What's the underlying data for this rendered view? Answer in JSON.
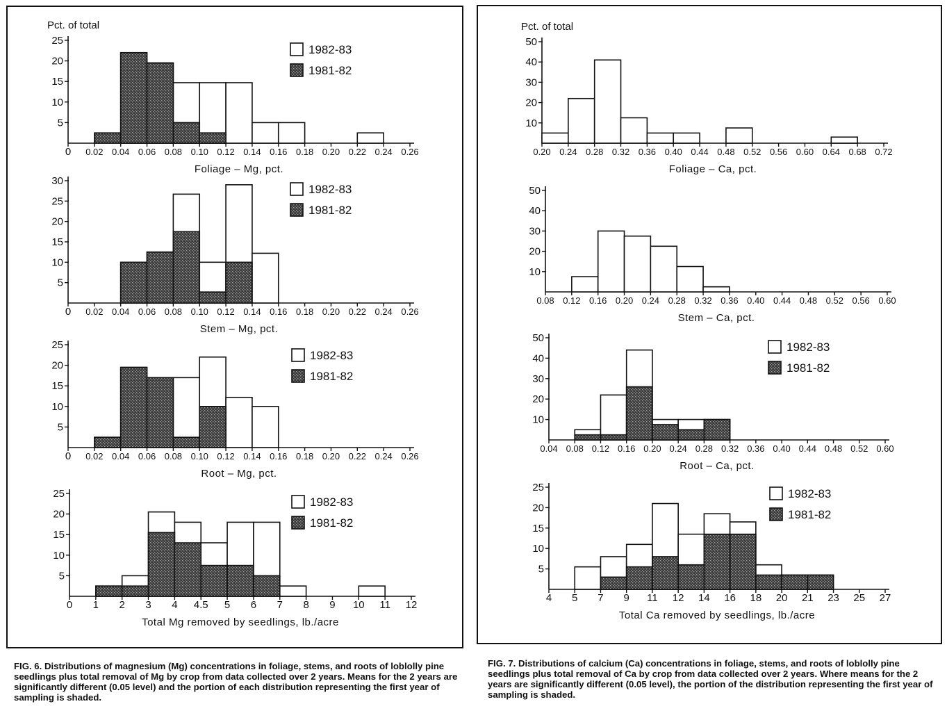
{
  "figures": {
    "fig6": {
      "caption": "FIG. 6. Distributions of magnesium (Mg) concentrations in foliage, stems, and roots of loblolly pine seedlings plus total removal of Mg by crop from data collected over 2 years. Means for the 2 years are significantly different (0.05 level) and the portion of each distribution representing the first year of sampling is shaded."
    },
    "fig7": {
      "caption": "FIG. 7. Distributions of calcium (Ca) concentrations in foliage, stems, and roots of loblolly pine seedlings plus total removal of Ca by crop from data collected over 2 years. Where means for the 2 years are significantly different (0.05 level), the portion of the distribution representing the first year of sampling is shaded."
    }
  },
  "colors": {
    "ink": "#111111",
    "paper": "#ffffff",
    "shade": "#3a3a3a"
  },
  "chart_data": [
    {
      "id": "fig6-foliage",
      "type": "bar",
      "figure": "fig6",
      "ylabel_top": "Pct. of total",
      "xlabel": "Foliage – Mg, pct.",
      "xticks": [
        "0",
        "0.02",
        "0.04",
        "0.06",
        "0.08",
        "0.10",
        "0.12",
        "0.14",
        "0.16",
        "0.18",
        "0.20",
        "0.22",
        "0.24",
        "0.26"
      ],
      "yticks": [
        5,
        10,
        15,
        20,
        25
      ],
      "ylim": [
        0,
        25
      ],
      "legend": {
        "open": "1982-83",
        "shaded": "1981-82"
      },
      "series": [
        {
          "name": "1982-83",
          "values": [
            0,
            0,
            22,
            19.5,
            14.7,
            14.7,
            14.7,
            5,
            5,
            0,
            0,
            2.5,
            0
          ]
        },
        {
          "name": "1981-82",
          "values": [
            0,
            2.5,
            22,
            19.5,
            5,
            2.5,
            0,
            0,
            0,
            0,
            0,
            0,
            0
          ]
        }
      ]
    },
    {
      "id": "fig6-stem",
      "type": "bar",
      "figure": "fig6",
      "xlabel": "Stem – Mg, pct.",
      "xticks": [
        "0",
        "0.02",
        "0.04",
        "0.06",
        "0.08",
        "0.10",
        "0.12",
        "0.14",
        "0.16",
        "0.18",
        "0.20",
        "0.22",
        "0.24",
        "0.26"
      ],
      "yticks": [
        5,
        10,
        15,
        20,
        25,
        30
      ],
      "ylim": [
        0,
        30
      ],
      "legend": {
        "open": "1982-83",
        "shaded": "1981-82"
      },
      "series": [
        {
          "name": "1982-83",
          "values": [
            0,
            0,
            10,
            12.5,
            26.7,
            10,
            29,
            12.2,
            0,
            0,
            0,
            0,
            0
          ]
        },
        {
          "name": "1981-82",
          "values": [
            0,
            0,
            10,
            12.5,
            17.5,
            2.7,
            10,
            0,
            0,
            0,
            0,
            0,
            0
          ]
        }
      ]
    },
    {
      "id": "fig6-root",
      "type": "bar",
      "figure": "fig6",
      "xlabel": "Root – Mg, pct.",
      "xticks": [
        "0",
        "0.02",
        "0.04",
        "0.06",
        "0.08",
        "0.10",
        "0.12",
        "0.14",
        "0.16",
        "0.18",
        "0.20",
        "0.22",
        "0.24",
        "0.26"
      ],
      "yticks": [
        5,
        10,
        15,
        20,
        25
      ],
      "ylim": [
        0,
        25
      ],
      "legend": {
        "open": "1982-83",
        "shaded": "1981-82"
      },
      "series": [
        {
          "name": "1982-83",
          "values": [
            0,
            2.5,
            19.5,
            17,
            17,
            22,
            12.2,
            10,
            0,
            0,
            0,
            0,
            0
          ]
        },
        {
          "name": "1981-82",
          "values": [
            0,
            2.5,
            19.5,
            17,
            2.5,
            10,
            0,
            0,
            0,
            0,
            0,
            0,
            0
          ]
        }
      ]
    },
    {
      "id": "fig6-total",
      "type": "bar",
      "figure": "fig6",
      "xlabel": "Total Mg  removed  by  seedlings, lb./acre",
      "xticks": [
        "0",
        "1",
        "2",
        "3",
        "4",
        "4.5",
        "5",
        "6",
        "7",
        "8",
        "9",
        "10",
        "11",
        "12"
      ],
      "yticks": [
        5,
        10,
        15,
        20,
        25
      ],
      "ylim": [
        0,
        25
      ],
      "legend": {
        "open": "1982-83",
        "shaded": "1981-82"
      },
      "series": [
        {
          "name": "1982-83",
          "values": [
            0,
            2.5,
            5,
            20.5,
            18,
            13,
            18,
            18,
            2.5,
            0,
            0,
            2.5,
            0
          ]
        },
        {
          "name": "1981-82",
          "values": [
            0,
            2.5,
            2.5,
            15.5,
            13,
            7.5,
            7.5,
            5,
            0,
            0,
            0,
            0,
            0
          ]
        }
      ]
    },
    {
      "id": "fig7-foliage",
      "type": "bar",
      "figure": "fig7",
      "ylabel_top": "Pct. of total",
      "xlabel": "Foliage – Ca, pct.",
      "xticks": [
        "0.20",
        "0.24",
        "0.28",
        "0.32",
        "0.36",
        "0.40",
        "0.44",
        "0.48",
        "0.52",
        "0.56",
        "0.60",
        "0.64",
        "0.68",
        "0.72"
      ],
      "yticks": [
        10,
        20,
        30,
        40,
        50
      ],
      "ylim": [
        0,
        50
      ],
      "series": [
        {
          "name": "",
          "values": [
            5,
            22,
            41,
            12.5,
            5,
            5,
            0,
            7.5,
            0,
            0,
            0,
            3,
            0
          ]
        }
      ]
    },
    {
      "id": "fig7-stem",
      "type": "bar",
      "figure": "fig7",
      "xlabel": "Stem – Ca, pct.",
      "xticks": [
        "0.08",
        "0.12",
        "0.16",
        "0.20",
        "0.24",
        "0.28",
        "0.32",
        "0.36",
        "0.40",
        "0.44",
        "0.48",
        "0.52",
        "0.56",
        "0.60"
      ],
      "yticks": [
        10,
        20,
        30,
        40,
        50
      ],
      "ylim": [
        0,
        50
      ],
      "series": [
        {
          "name": "",
          "values": [
            0,
            7.5,
            30,
            27.5,
            22.5,
            12.5,
            2.5,
            0,
            0,
            0,
            0,
            0,
            0
          ]
        }
      ]
    },
    {
      "id": "fig7-root",
      "type": "bar",
      "figure": "fig7",
      "xlabel": "Root – Ca, pct.",
      "xticks": [
        "0.04",
        "0.08",
        "0.12",
        "0.16",
        "0.20",
        "0.24",
        "0.28",
        "0.32",
        "0.36",
        "0.40",
        "0.44",
        "0.48",
        "0.52",
        "0.60"
      ],
      "yticks": [
        10,
        20,
        30,
        40,
        50
      ],
      "ylim": [
        0,
        50
      ],
      "legend": {
        "open": "1982-83",
        "shaded": "1981-82"
      },
      "series": [
        {
          "name": "1982-83",
          "values": [
            0,
            5,
            22,
            44,
            10,
            10,
            10,
            0,
            0,
            0,
            0,
            0,
            0
          ]
        },
        {
          "name": "1981-82",
          "values": [
            0,
            2.5,
            2.5,
            26,
            7.5,
            5,
            10,
            0,
            0,
            0,
            0,
            0,
            0
          ]
        }
      ]
    },
    {
      "id": "fig7-total",
      "type": "bar",
      "figure": "fig7",
      "xlabel": "Total Ca  removed  by  seedlings, lb./acre",
      "xticks": [
        "4",
        "5",
        "7",
        "9",
        "11",
        "12",
        "14",
        "16",
        "18",
        "20",
        "21",
        "23",
        "25",
        "27"
      ],
      "yticks": [
        5,
        10,
        15,
        20,
        25
      ],
      "ylim": [
        0,
        25
      ],
      "legend": {
        "open": "1982-83",
        "shaded": "1981-82"
      },
      "series": [
        {
          "name": "1982-83",
          "values": [
            0,
            5.5,
            8,
            11,
            21,
            13.5,
            18.5,
            16.5,
            6,
            3.5,
            3.5,
            0,
            0
          ]
        },
        {
          "name": "1981-82",
          "values": [
            0,
            0,
            3,
            5.5,
            8,
            6,
            13.5,
            13.5,
            3.5,
            3.5,
            3.5,
            0,
            0
          ]
        }
      ]
    }
  ]
}
